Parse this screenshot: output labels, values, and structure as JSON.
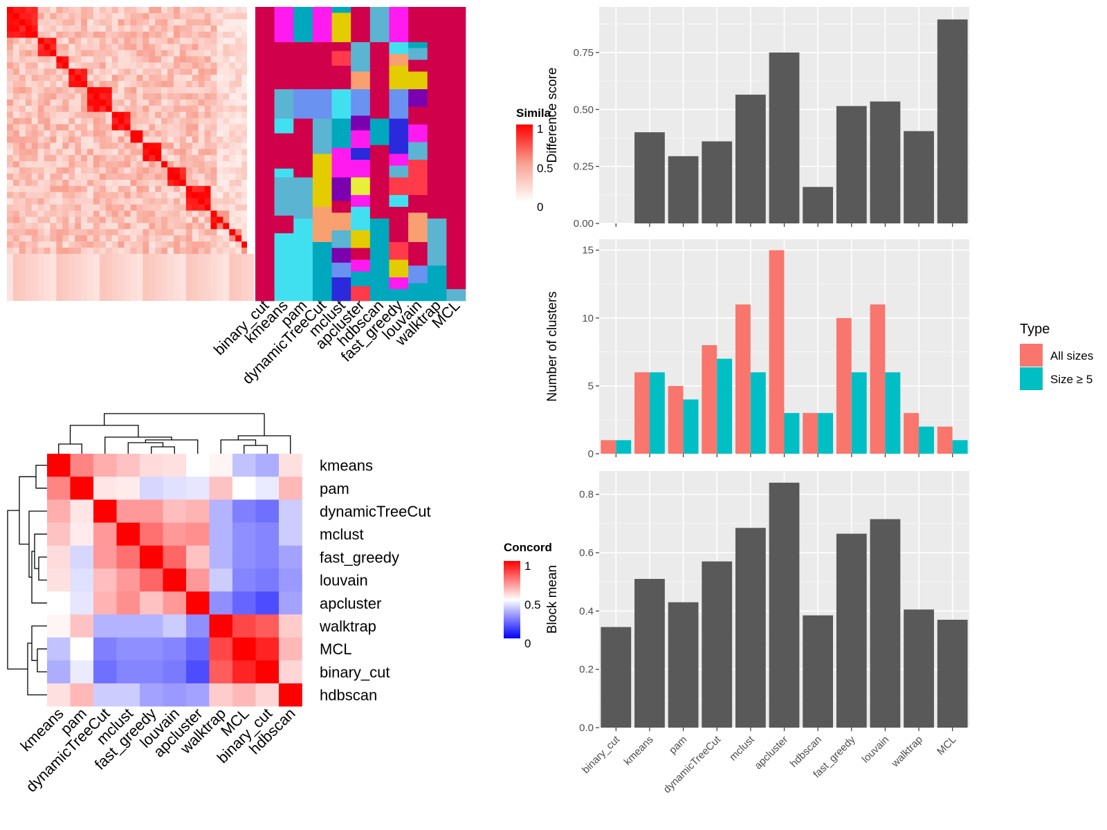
{
  "chart_data": [
    {
      "id": "similarity_heatmap",
      "type": "heatmap",
      "legend_title": "Simila",
      "legend_ticks": [
        "1",
        "0.5",
        "0"
      ],
      "annotation_columns": [
        "binary_cut",
        "kmeans",
        "pam",
        "dynamicTreeCut",
        "mclust",
        "apcluster",
        "hdbscan",
        "fast_greedy",
        "louvain",
        "walktrap",
        "MCL"
      ],
      "n_terms": 40,
      "colors": {
        "high": "#FF0000",
        "mid": "#F8A090",
        "low": "#FFFFFF"
      }
    },
    {
      "id": "concordance_heatmap",
      "type": "heatmap",
      "legend_title": "Concord",
      "legend_ticks": [
        "1",
        "0.5",
        "0"
      ],
      "rows": [
        "kmeans",
        "pam",
        "dynamicTreeCut",
        "mclust",
        "fast_greedy",
        "louvain",
        "apcluster",
        "walktrap",
        "MCL",
        "binary_cut",
        "hdbscan"
      ],
      "columns": [
        "kmeans",
        "pam",
        "dynamicTreeCut",
        "mclust",
        "fast_greedy",
        "louvain",
        "apcluster",
        "walktrap",
        "MCL",
        "binary_cut",
        "hdbscan"
      ],
      "values": [
        [
          1.0,
          0.74,
          0.66,
          0.62,
          0.57,
          0.56,
          0.5,
          0.52,
          0.38,
          0.34,
          0.56
        ],
        [
          0.74,
          1.0,
          0.55,
          0.54,
          0.42,
          0.44,
          0.45,
          0.62,
          0.5,
          0.46,
          0.64
        ],
        [
          0.66,
          0.55,
          1.0,
          0.7,
          0.7,
          0.63,
          0.65,
          0.35,
          0.25,
          0.22,
          0.4
        ],
        [
          0.62,
          0.54,
          0.7,
          1.0,
          0.78,
          0.7,
          0.72,
          0.35,
          0.28,
          0.26,
          0.4
        ],
        [
          0.57,
          0.42,
          0.7,
          0.78,
          1.0,
          0.8,
          0.62,
          0.35,
          0.28,
          0.26,
          0.32
        ],
        [
          0.56,
          0.44,
          0.63,
          0.7,
          0.8,
          1.0,
          0.7,
          0.4,
          0.26,
          0.24,
          0.3
        ],
        [
          0.5,
          0.45,
          0.65,
          0.72,
          0.62,
          0.7,
          1.0,
          0.28,
          0.2,
          0.15,
          0.32
        ],
        [
          0.52,
          0.62,
          0.35,
          0.35,
          0.35,
          0.4,
          0.28,
          1.0,
          0.86,
          0.82,
          0.6
        ],
        [
          0.38,
          0.5,
          0.25,
          0.28,
          0.28,
          0.26,
          0.2,
          0.86,
          1.0,
          0.93,
          0.64
        ],
        [
          0.34,
          0.46,
          0.22,
          0.26,
          0.26,
          0.24,
          0.15,
          0.82,
          0.93,
          1.0,
          0.58
        ],
        [
          0.56,
          0.64,
          0.4,
          0.4,
          0.32,
          0.3,
          0.32,
          0.6,
          0.64,
          0.58,
          1.0
        ]
      ],
      "colors": {
        "high": "#FF0000",
        "mid": "#FFFFFF",
        "low": "#0000FF"
      }
    },
    {
      "id": "difference_score",
      "type": "bar",
      "categories": [
        "binary_cut",
        "kmeans",
        "pam",
        "dynamicTreeCut",
        "mclust",
        "apcluster",
        "hdbscan",
        "fast_greedy",
        "louvain",
        "walktrap",
        "MCL"
      ],
      "values": [
        0.0,
        0.4,
        0.295,
        0.36,
        0.565,
        0.75,
        0.16,
        0.515,
        0.535,
        0.405,
        0.895
      ],
      "ylabel": "Difference score",
      "ylim": [
        0,
        0.95
      ],
      "yticks": [
        "0.00",
        "0.25",
        "0.50",
        "0.75"
      ],
      "bar_color": "#595959"
    },
    {
      "id": "number_of_clusters",
      "type": "bar",
      "categories": [
        "binary_cut",
        "kmeans",
        "pam",
        "dynamicTreeCut",
        "mclust",
        "apcluster",
        "hdbscan",
        "fast_greedy",
        "louvain",
        "walktrap",
        "MCL"
      ],
      "series": [
        {
          "name": "All sizes",
          "color": "#F8766D",
          "values": [
            1,
            6,
            5,
            8,
            11,
            15,
            3,
            10,
            11,
            3,
            2
          ]
        },
        {
          "name": "Size ≥ 5",
          "color": "#00BFC4",
          "values": [
            1,
            6,
            4,
            7,
            6,
            3,
            3,
            6,
            6,
            2,
            1
          ]
        }
      ],
      "ylabel": "Number of clusters",
      "ylim": [
        0,
        15.8
      ],
      "yticks": [
        "0",
        "5",
        "10",
        "15"
      ],
      "legend_title": "Type",
      "legend_position": "right"
    },
    {
      "id": "block_mean",
      "type": "bar",
      "categories": [
        "binary_cut",
        "kmeans",
        "pam",
        "dynamicTreeCut",
        "mclust",
        "apcluster",
        "hdbscan",
        "fast_greedy",
        "louvain",
        "walktrap",
        "MCL"
      ],
      "values": [
        0.345,
        0.51,
        0.43,
        0.57,
        0.685,
        0.84,
        0.385,
        0.665,
        0.715,
        0.405,
        0.37
      ],
      "ylabel": "Block mean",
      "ylim": [
        0,
        0.88
      ],
      "yticks": [
        "0.0",
        "0.2",
        "0.4",
        "0.6",
        "0.8"
      ],
      "bar_color": "#595959"
    }
  ]
}
